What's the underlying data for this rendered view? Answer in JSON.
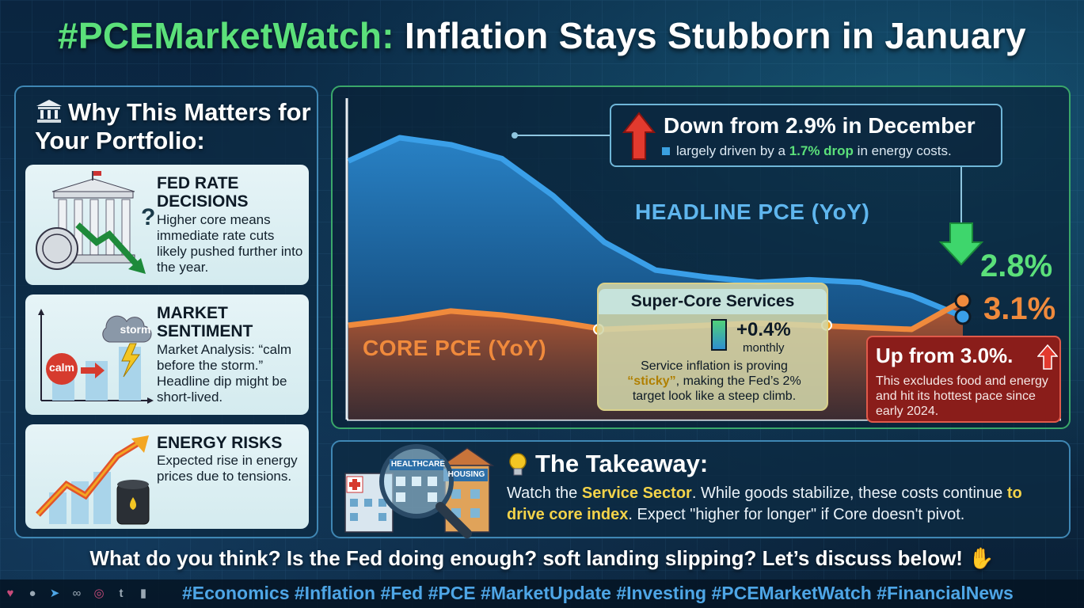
{
  "title": {
    "tag": "#PCEMarketWatch:",
    "rest": " Inflation Stays Stubborn in January"
  },
  "left_panel": {
    "heading": "Why This Matters for Your Portfolio:",
    "cards": [
      {
        "title": "FED RATE DECISIONS",
        "text": "Higher core means immediate rate cuts likely pushed further into the year."
      },
      {
        "title": "MARKET SENTIMENT",
        "text": "Market Analysis: “calm before the storm.” Headline dip might be short-lived.",
        "bubble_calm": "calm",
        "bubble_storm": "storm"
      },
      {
        "title": "ENERGY RISKS",
        "text": "Expected rise in energy prices due to tensions."
      }
    ]
  },
  "chart_data": {
    "type": "line",
    "series": [
      {
        "name": "HEADLINE PCE (YoY)",
        "values": [
          3.45,
          3.55,
          3.52,
          3.46,
          3.3,
          3.1,
          2.98,
          2.95,
          2.93,
          2.94,
          2.93,
          2.88,
          2.8
        ]
      },
      {
        "name": "CORE PCE (YoY)",
        "values": [
          2.98,
          3.01,
          3.05,
          3.03,
          3.0,
          2.96,
          2.97,
          2.98,
          2.99,
          2.98,
          2.97,
          2.96,
          3.1
        ]
      }
    ],
    "final_values": {
      "headline": "2.8%",
      "core": "3.1%"
    },
    "colors": {
      "headline": "#3a9fe8",
      "core": "#f08a3c"
    }
  },
  "callout_top": {
    "heading": "Down from 2.9% in December",
    "sub_pre": "largely driven by a ",
    "sub_hl": "1.7% drop",
    "sub_post": " in energy costs."
  },
  "supercore": {
    "title": "Super-Core Services",
    "pct": "+0.4%",
    "period": "monthly",
    "desc_pre": "Service inflation is proving ",
    "desc_hl": "“sticky”",
    "desc_post": ", making the Fed’s 2% target look like a steep climb."
  },
  "callout_up": {
    "heading": "Up from 3.0%.",
    "text": "This excludes food and energy and hit its hottest pace since early 2024."
  },
  "takeaway": {
    "title": "The Takeaway:",
    "t1": "Watch the ",
    "hl1": "Service Sector",
    "t2": ". While goods stabilize, these costs continue ",
    "hl2": "to drive core index",
    "t3": ". Expect \"higher for longer\" if Core doesn't pivot.",
    "sign_healthcare": "HEALTHCARE",
    "sign_housing": "HOUSING"
  },
  "question": "What do you think? Is the Fed doing enough? soft landing slipping? Let’s discuss below!",
  "hashtags": "#Economics #Inflation #Fed #PCE #MarketUpdate #Investing #PCEMarketWatch #FinancialNews",
  "footer_icons": [
    "heart-icon",
    "comment-icon",
    "send-icon",
    "link-icon",
    "instagram-icon",
    "tumblr-icon",
    "bookmark-icon"
  ]
}
